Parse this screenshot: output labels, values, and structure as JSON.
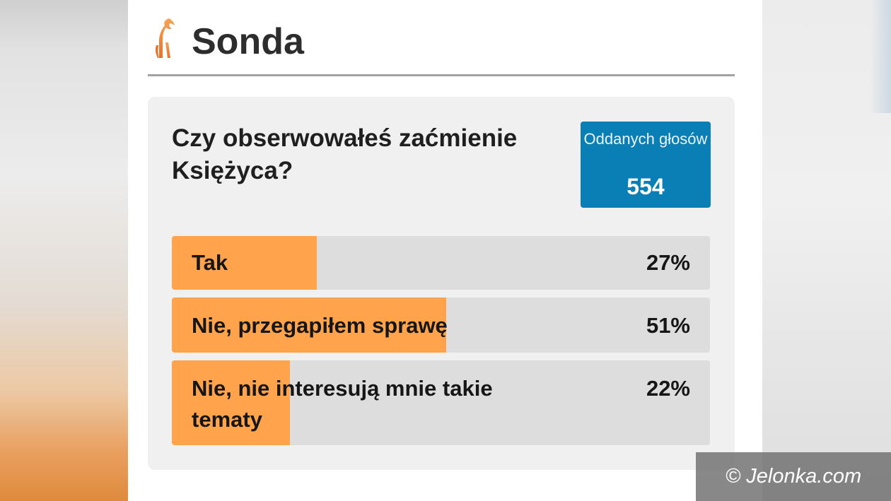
{
  "header": {
    "title": "Sonda"
  },
  "poll": {
    "question": "Czy obserwowałeś zaćmienie Księżyca?",
    "votes_label": "Oddanych głosów",
    "votes_count": "554",
    "options": [
      {
        "label": "Tak",
        "percent_text": "27%",
        "percent": 27
      },
      {
        "label": "Nie, przegapiłem sprawę",
        "percent_text": "51%",
        "percent": 51
      },
      {
        "label": "Nie, nie interesują mnie takie tematy",
        "percent_text": "22%",
        "percent": 22
      }
    ]
  },
  "watermark": {
    "text": "© Jelonka.com"
  },
  "colors": {
    "accent_orange": "#ffa34d",
    "votes_blue": "#0a7fb5",
    "bar_track": "#dddddd",
    "card_bg": "#f0f0f0"
  },
  "icons": {
    "logo": "deer-logo-icon"
  }
}
